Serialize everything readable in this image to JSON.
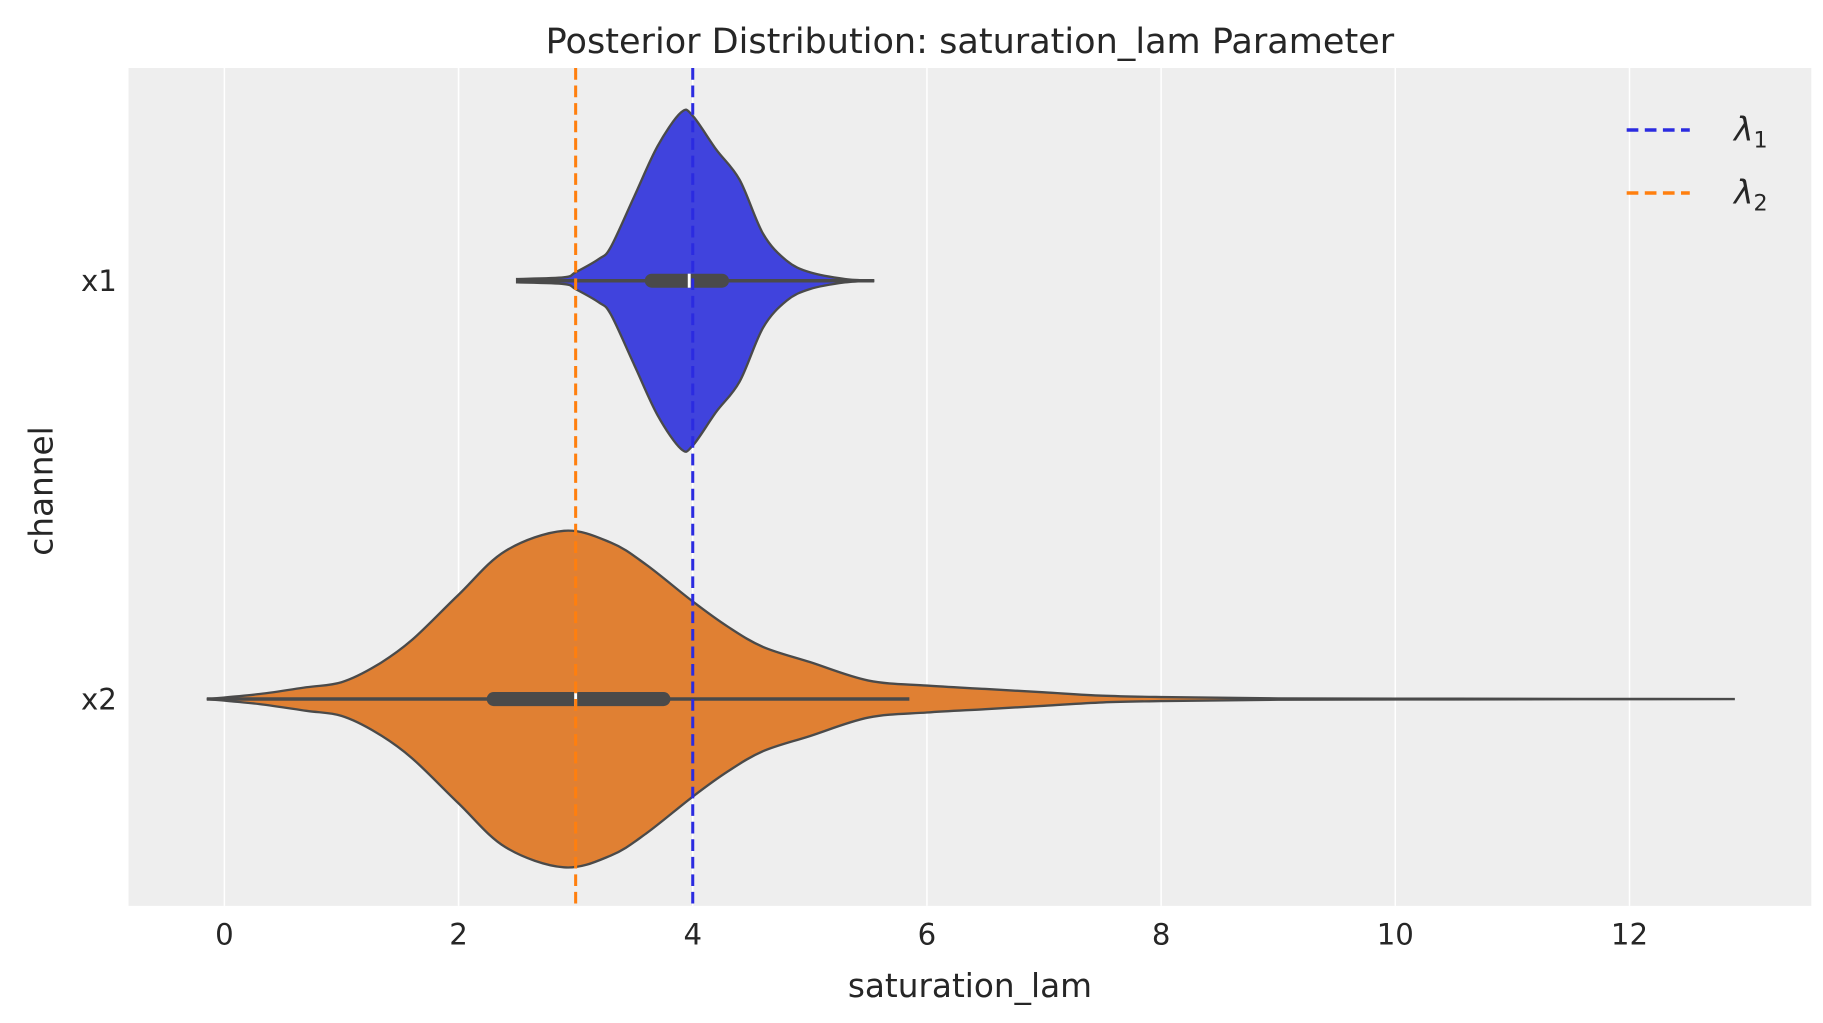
{
  "chart_data": {
    "type": "violin",
    "orientation": "horizontal",
    "title": "Posterior Distribution: saturation_lam Parameter",
    "xlabel": "saturation_lam",
    "ylabel": "channel",
    "xlim": [
      -0.8,
      13.5
    ],
    "xticks": [
      0,
      2,
      4,
      6,
      8,
      10,
      12
    ],
    "grid": "vertical",
    "background": "#eeeeee",
    "categories": [
      "x1",
      "x2"
    ],
    "series": [
      {
        "category": "x1",
        "color": "#4043dd",
        "min": 2.5,
        "max": 5.55,
        "q1": 3.65,
        "median": 3.97,
        "q3": 4.25,
        "whisker_low": 2.5,
        "whisker_high": 5.55,
        "density_x": [
          2.5,
          2.9,
          3.0,
          3.2,
          3.3,
          3.5,
          3.7,
          3.9,
          4.0,
          4.2,
          4.4,
          4.6,
          4.8,
          5.0,
          5.3,
          5.55
        ],
        "density_rel": [
          0.01,
          0.02,
          0.05,
          0.13,
          0.2,
          0.5,
          0.8,
          1.0,
          0.98,
          0.78,
          0.6,
          0.28,
          0.12,
          0.05,
          0.01,
          0.0
        ]
      },
      {
        "category": "x2",
        "color": "#e08033",
        "min": -0.15,
        "max": 12.9,
        "q1": 2.3,
        "median": 3.0,
        "q3": 3.75,
        "whisker_low": -0.15,
        "whisker_high": 5.85,
        "density_x": [
          -0.15,
          0.3,
          0.7,
          1.0,
          1.3,
          1.6,
          2.0,
          2.4,
          2.9,
          3.3,
          3.6,
          4.0,
          4.3,
          4.6,
          5.0,
          5.5,
          6.0,
          6.5,
          7.0,
          7.5,
          8.0,
          9.0,
          10.5,
          12.9
        ],
        "density_rel": [
          0.0,
          0.03,
          0.07,
          0.1,
          0.2,
          0.35,
          0.62,
          0.88,
          1.0,
          0.93,
          0.8,
          0.58,
          0.43,
          0.31,
          0.22,
          0.11,
          0.08,
          0.06,
          0.04,
          0.02,
          0.012,
          0.004,
          0.002,
          0.0
        ]
      }
    ],
    "reference_lines": [
      {
        "x": 4,
        "label": "λ",
        "sub": "1",
        "color": "#2b2be0",
        "style": "dashed"
      },
      {
        "x": 3,
        "label": "λ",
        "sub": "2",
        "color": "#ff7f0e",
        "style": "dashed"
      }
    ],
    "legend": {
      "placement": "top-right"
    }
  }
}
